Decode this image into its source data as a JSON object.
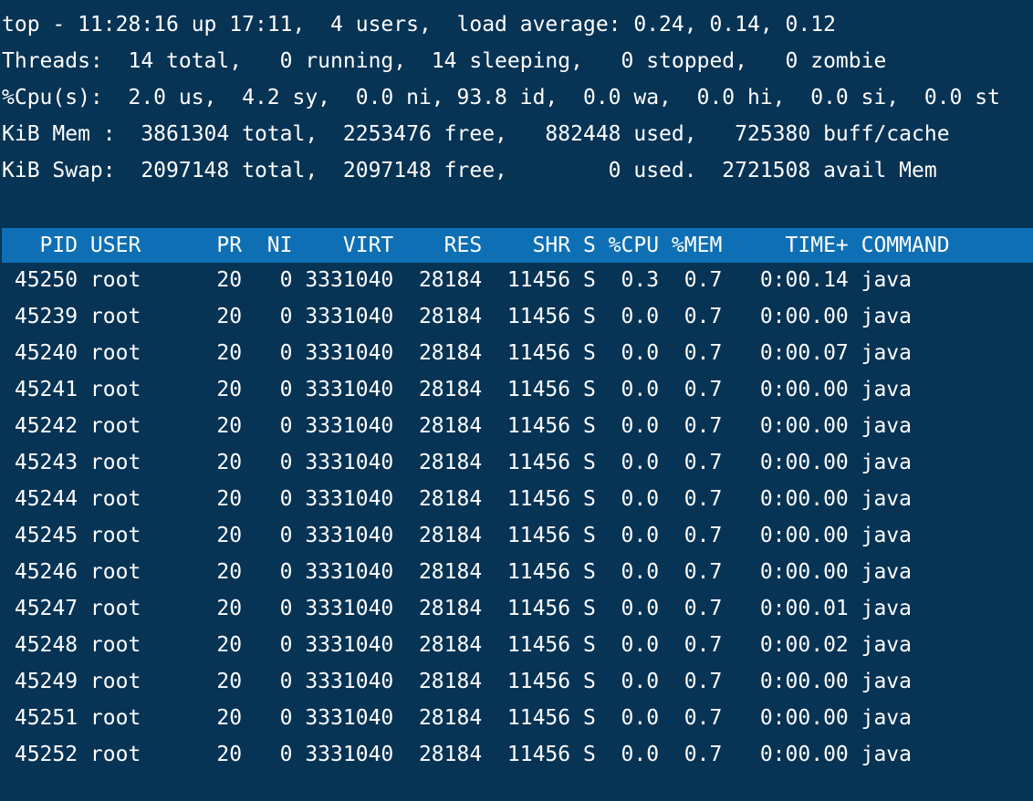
{
  "summary": {
    "top_line": "top - 11:28:16 up 17:11,  4 users,  load average: 0.24, 0.14, 0.12",
    "threads_line": "Threads:  14 total,   0 running,  14 sleeping,   0 stopped,   0 zombie",
    "cpu_line": "%Cpu(s):  2.0 us,  4.2 sy,  0.0 ni, 93.8 id,  0.0 wa,  0.0 hi,  0.0 si,  0.0 st",
    "mem_line": "KiB Mem :  3861304 total,  2253476 free,   882448 used,   725380 buff/cache",
    "swap_line": "KiB Swap:  2097148 total,  2097148 free,        0 used.  2721508 avail Mem"
  },
  "table": {
    "header_line": "   PID USER      PR  NI    VIRT    RES    SHR S %CPU %MEM     TIME+ COMMAND",
    "rows": [
      " 45250 root      20   0 3331040  28184  11456 S  0.3  0.7   0:00.14 java",
      " 45239 root      20   0 3331040  28184  11456 S  0.0  0.7   0:00.00 java",
      " 45240 root      20   0 3331040  28184  11456 S  0.0  0.7   0:00.07 java",
      " 45241 root      20   0 3331040  28184  11456 S  0.0  0.7   0:00.00 java",
      " 45242 root      20   0 3331040  28184  11456 S  0.0  0.7   0:00.00 java",
      " 45243 root      20   0 3331040  28184  11456 S  0.0  0.7   0:00.00 java",
      " 45244 root      20   0 3331040  28184  11456 S  0.0  0.7   0:00.00 java",
      " 45245 root      20   0 3331040  28184  11456 S  0.0  0.7   0:00.00 java",
      " 45246 root      20   0 3331040  28184  11456 S  0.0  0.7   0:00.00 java",
      " 45247 root      20   0 3331040  28184  11456 S  0.0  0.7   0:00.01 java",
      " 45248 root      20   0 3331040  28184  11456 S  0.0  0.7   0:00.02 java",
      " 45249 root      20   0 3331040  28184  11456 S  0.0  0.7   0:00.00 java",
      " 45251 root      20   0 3331040  28184  11456 S  0.0  0.7   0:00.00 java",
      " 45252 root      20   0 3331040  28184  11456 S  0.0  0.7   0:00.00 java"
    ]
  },
  "colors": {
    "background": "#073355",
    "header_highlight": "#0e6fb4",
    "text": "#ffffff"
  }
}
